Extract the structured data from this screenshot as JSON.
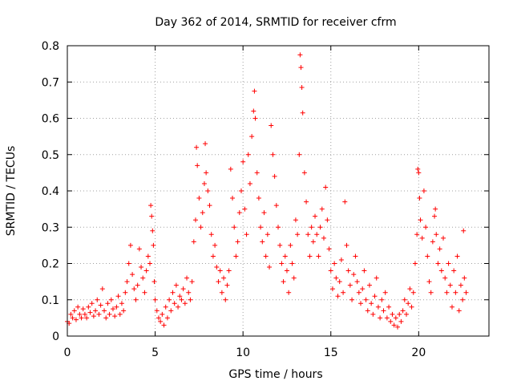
{
  "chart_data": {
    "type": "scatter",
    "title": "Day 362 of 2014, SRMTID for receiver cfrm",
    "xlabel": "GPS time / hours",
    "ylabel": "SRMTID / TECUs",
    "xlim": [
      0,
      24
    ],
    "ylim": [
      0,
      0.8
    ],
    "xticks": [
      0,
      5,
      10,
      15,
      20
    ],
    "xtick_labels": [
      "0",
      "5",
      "10",
      "15",
      "20"
    ],
    "yticks": [
      0,
      0.1,
      0.2,
      0.3,
      0.4,
      0.5,
      0.6,
      0.7,
      0.8
    ],
    "ytick_labels": [
      "0",
      "0.1",
      "0.2",
      "0.3",
      "0.4",
      "0.5",
      "0.6",
      "0.7",
      "0.8"
    ],
    "grid": true,
    "marker": "+",
    "marker_color": "#ff0000",
    "series": [
      {
        "name": "SRMTID",
        "points": [
          [
            0.0,
            0.04
          ],
          [
            0.1,
            0.035
          ],
          [
            0.2,
            0.06
          ],
          [
            0.3,
            0.05
          ],
          [
            0.4,
            0.07
          ],
          [
            0.5,
            0.045
          ],
          [
            0.6,
            0.08
          ],
          [
            0.7,
            0.06
          ],
          [
            0.8,
            0.05
          ],
          [
            0.9,
            0.075
          ],
          [
            1.0,
            0.06
          ],
          [
            1.1,
            0.05
          ],
          [
            1.2,
            0.08
          ],
          [
            1.3,
            0.065
          ],
          [
            1.4,
            0.09
          ],
          [
            1.5,
            0.055
          ],
          [
            1.6,
            0.07
          ],
          [
            1.7,
            0.1
          ],
          [
            1.8,
            0.06
          ],
          [
            1.9,
            0.085
          ],
          [
            2.0,
            0.13
          ],
          [
            2.1,
            0.07
          ],
          [
            2.2,
            0.05
          ],
          [
            2.3,
            0.09
          ],
          [
            2.4,
            0.06
          ],
          [
            2.5,
            0.1
          ],
          [
            2.6,
            0.075
          ],
          [
            2.7,
            0.055
          ],
          [
            2.8,
            0.08
          ],
          [
            2.9,
            0.11
          ],
          [
            3.0,
            0.06
          ],
          [
            3.1,
            0.09
          ],
          [
            3.2,
            0.07
          ],
          [
            3.3,
            0.12
          ],
          [
            3.4,
            0.15
          ],
          [
            3.5,
            0.2
          ],
          [
            3.6,
            0.25
          ],
          [
            3.7,
            0.17
          ],
          [
            3.8,
            0.13
          ],
          [
            3.9,
            0.1
          ],
          [
            4.0,
            0.14
          ],
          [
            4.1,
            0.24
          ],
          [
            4.2,
            0.19
          ],
          [
            4.3,
            0.16
          ],
          [
            4.4,
            0.12
          ],
          [
            4.5,
            0.18
          ],
          [
            4.6,
            0.22
          ],
          [
            4.7,
            0.2
          ],
          [
            4.75,
            0.36
          ],
          [
            4.8,
            0.33
          ],
          [
            4.85,
            0.29
          ],
          [
            4.9,
            0.25
          ],
          [
            4.95,
            0.15
          ],
          [
            5.0,
            0.1
          ],
          [
            5.1,
            0.07
          ],
          [
            5.2,
            0.05
          ],
          [
            5.3,
            0.04
          ],
          [
            5.4,
            0.06
          ],
          [
            5.5,
            0.03
          ],
          [
            5.6,
            0.08
          ],
          [
            5.7,
            0.05
          ],
          [
            5.8,
            0.1
          ],
          [
            5.9,
            0.07
          ],
          [
            6.0,
            0.12
          ],
          [
            6.1,
            0.09
          ],
          [
            6.2,
            0.14
          ],
          [
            6.3,
            0.08
          ],
          [
            6.4,
            0.11
          ],
          [
            6.5,
            0.1
          ],
          [
            6.6,
            0.13
          ],
          [
            6.7,
            0.09
          ],
          [
            6.8,
            0.16
          ],
          [
            6.9,
            0.12
          ],
          [
            7.0,
            0.1
          ],
          [
            7.1,
            0.15
          ],
          [
            7.2,
            0.26
          ],
          [
            7.3,
            0.32
          ],
          [
            7.35,
            0.52
          ],
          [
            7.4,
            0.47
          ],
          [
            7.5,
            0.38
          ],
          [
            7.6,
            0.3
          ],
          [
            7.7,
            0.34
          ],
          [
            7.8,
            0.42
          ],
          [
            7.85,
            0.53
          ],
          [
            7.9,
            0.45
          ],
          [
            8.0,
            0.4
          ],
          [
            8.1,
            0.36
          ],
          [
            8.2,
            0.28
          ],
          [
            8.3,
            0.22
          ],
          [
            8.4,
            0.25
          ],
          [
            8.5,
            0.19
          ],
          [
            8.6,
            0.15
          ],
          [
            8.7,
            0.18
          ],
          [
            8.8,
            0.12
          ],
          [
            8.9,
            0.16
          ],
          [
            9.0,
            0.1
          ],
          [
            9.1,
            0.14
          ],
          [
            9.2,
            0.18
          ],
          [
            9.3,
            0.46
          ],
          [
            9.4,
            0.38
          ],
          [
            9.5,
            0.3
          ],
          [
            9.6,
            0.22
          ],
          [
            9.7,
            0.26
          ],
          [
            9.8,
            0.34
          ],
          [
            9.9,
            0.4
          ],
          [
            10.0,
            0.48
          ],
          [
            10.1,
            0.35
          ],
          [
            10.2,
            0.28
          ],
          [
            10.3,
            0.5
          ],
          [
            10.4,
            0.42
          ],
          [
            10.5,
            0.55
          ],
          [
            10.6,
            0.62
          ],
          [
            10.65,
            0.675
          ],
          [
            10.7,
            0.6
          ],
          [
            10.8,
            0.45
          ],
          [
            10.9,
            0.38
          ],
          [
            11.0,
            0.3
          ],
          [
            11.1,
            0.26
          ],
          [
            11.2,
            0.34
          ],
          [
            11.3,
            0.22
          ],
          [
            11.4,
            0.28
          ],
          [
            11.5,
            0.19
          ],
          [
            11.6,
            0.58
          ],
          [
            11.7,
            0.5
          ],
          [
            11.8,
            0.44
          ],
          [
            11.9,
            0.36
          ],
          [
            12.0,
            0.3
          ],
          [
            12.1,
            0.25
          ],
          [
            12.2,
            0.2
          ],
          [
            12.3,
            0.15
          ],
          [
            12.4,
            0.22
          ],
          [
            12.5,
            0.18
          ],
          [
            12.6,
            0.12
          ],
          [
            12.7,
            0.25
          ],
          [
            12.8,
            0.2
          ],
          [
            12.9,
            0.16
          ],
          [
            13.0,
            0.32
          ],
          [
            13.1,
            0.28
          ],
          [
            13.2,
            0.5
          ],
          [
            13.25,
            0.775
          ],
          [
            13.3,
            0.74
          ],
          [
            13.35,
            0.685
          ],
          [
            13.4,
            0.615
          ],
          [
            13.5,
            0.45
          ],
          [
            13.6,
            0.37
          ],
          [
            13.7,
            0.28
          ],
          [
            13.8,
            0.22
          ],
          [
            13.9,
            0.3
          ],
          [
            14.0,
            0.26
          ],
          [
            14.1,
            0.33
          ],
          [
            14.2,
            0.28
          ],
          [
            14.3,
            0.22
          ],
          [
            14.4,
            0.3
          ],
          [
            14.5,
            0.35
          ],
          [
            14.6,
            0.27
          ],
          [
            14.7,
            0.41
          ],
          [
            14.8,
            0.32
          ],
          [
            14.9,
            0.24
          ],
          [
            15.0,
            0.18
          ],
          [
            15.1,
            0.13
          ],
          [
            15.2,
            0.2
          ],
          [
            15.3,
            0.16
          ],
          [
            15.4,
            0.11
          ],
          [
            15.5,
            0.15
          ],
          [
            15.6,
            0.21
          ],
          [
            15.7,
            0.12
          ],
          [
            15.8,
            0.37
          ],
          [
            15.9,
            0.25
          ],
          [
            16.0,
            0.18
          ],
          [
            16.1,
            0.14
          ],
          [
            16.2,
            0.1
          ],
          [
            16.3,
            0.17
          ],
          [
            16.4,
            0.22
          ],
          [
            16.5,
            0.15
          ],
          [
            16.6,
            0.12
          ],
          [
            16.7,
            0.09
          ],
          [
            16.8,
            0.13
          ],
          [
            16.9,
            0.18
          ],
          [
            17.0,
            0.1
          ],
          [
            17.1,
            0.07
          ],
          [
            17.2,
            0.14
          ],
          [
            17.3,
            0.09
          ],
          [
            17.4,
            0.06
          ],
          [
            17.5,
            0.11
          ],
          [
            17.6,
            0.16
          ],
          [
            17.7,
            0.08
          ],
          [
            17.8,
            0.05
          ],
          [
            17.9,
            0.1
          ],
          [
            18.0,
            0.07
          ],
          [
            18.1,
            0.12
          ],
          [
            18.2,
            0.05
          ],
          [
            18.3,
            0.08
          ],
          [
            18.4,
            0.04
          ],
          [
            18.5,
            0.06
          ],
          [
            18.6,
            0.03
          ],
          [
            18.7,
            0.05
          ],
          [
            18.8,
            0.025
          ],
          [
            18.9,
            0.06
          ],
          [
            19.0,
            0.04
          ],
          [
            19.1,
            0.07
          ],
          [
            19.2,
            0.1
          ],
          [
            19.3,
            0.06
          ],
          [
            19.4,
            0.09
          ],
          [
            19.5,
            0.13
          ],
          [
            19.6,
            0.08
          ],
          [
            19.7,
            0.12
          ],
          [
            19.8,
            0.2
          ],
          [
            19.9,
            0.28
          ],
          [
            19.95,
            0.46
          ],
          [
            20.0,
            0.45
          ],
          [
            20.05,
            0.38
          ],
          [
            20.1,
            0.32
          ],
          [
            20.2,
            0.27
          ],
          [
            20.3,
            0.4
          ],
          [
            20.4,
            0.3
          ],
          [
            20.5,
            0.22
          ],
          [
            20.6,
            0.15
          ],
          [
            20.7,
            0.12
          ],
          [
            20.8,
            0.26
          ],
          [
            20.9,
            0.33
          ],
          [
            20.95,
            0.35
          ],
          [
            21.0,
            0.28
          ],
          [
            21.1,
            0.2
          ],
          [
            21.2,
            0.24
          ],
          [
            21.3,
            0.18
          ],
          [
            21.4,
            0.27
          ],
          [
            21.5,
            0.16
          ],
          [
            21.6,
            0.12
          ],
          [
            21.7,
            0.2
          ],
          [
            21.8,
            0.14
          ],
          [
            21.9,
            0.08
          ],
          [
            22.0,
            0.18
          ],
          [
            22.1,
            0.12
          ],
          [
            22.2,
            0.22
          ],
          [
            22.3,
            0.07
          ],
          [
            22.4,
            0.14
          ],
          [
            22.5,
            0.1
          ],
          [
            22.55,
            0.29
          ],
          [
            22.6,
            0.16
          ],
          [
            22.7,
            0.12
          ]
        ]
      }
    ]
  }
}
